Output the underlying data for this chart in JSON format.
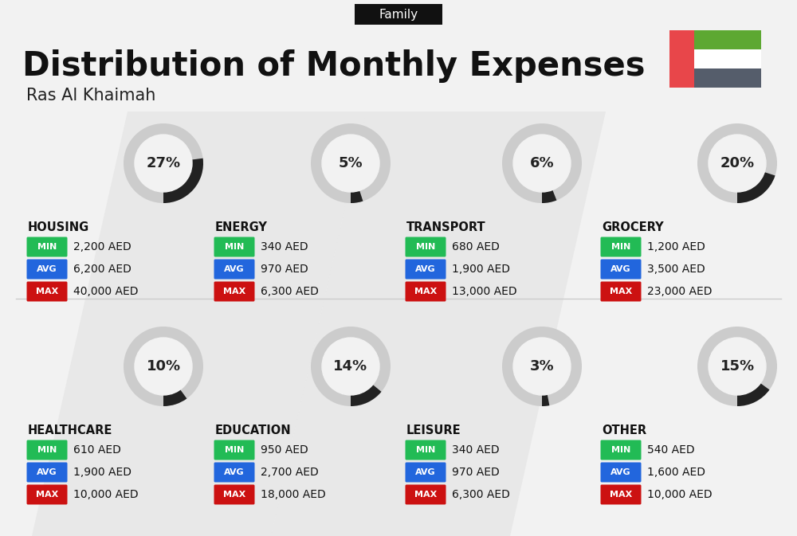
{
  "title": "Distribution of Monthly Expenses",
  "subtitle": "Ras Al Khaimah",
  "tag": "Family",
  "bg_color": "#f2f2f2",
  "categories": [
    {
      "name": "HOUSING",
      "pct": 27,
      "min_val": "2,200 AED",
      "avg_val": "6,200 AED",
      "max_val": "40,000 AED",
      "row": 0,
      "col": 0
    },
    {
      "name": "ENERGY",
      "pct": 5,
      "min_val": "340 AED",
      "avg_val": "970 AED",
      "max_val": "6,300 AED",
      "row": 0,
      "col": 1
    },
    {
      "name": "TRANSPORT",
      "pct": 6,
      "min_val": "680 AED",
      "avg_val": "1,900 AED",
      "max_val": "13,000 AED",
      "row": 0,
      "col": 2
    },
    {
      "name": "GROCERY",
      "pct": 20,
      "min_val": "1,200 AED",
      "avg_val": "3,500 AED",
      "max_val": "23,000 AED",
      "row": 0,
      "col": 3
    },
    {
      "name": "HEALTHCARE",
      "pct": 10,
      "min_val": "610 AED",
      "avg_val": "1,900 AED",
      "max_val": "10,000 AED",
      "row": 1,
      "col": 0
    },
    {
      "name": "EDUCATION",
      "pct": 14,
      "min_val": "950 AED",
      "avg_val": "2,700 AED",
      "max_val": "18,000 AED",
      "row": 1,
      "col": 1
    },
    {
      "name": "LEISURE",
      "pct": 3,
      "min_val": "340 AED",
      "avg_val": "970 AED",
      "max_val": "6,300 AED",
      "row": 1,
      "col": 2
    },
    {
      "name": "OTHER",
      "pct": 15,
      "min_val": "540 AED",
      "avg_val": "1,600 AED",
      "max_val": "10,000 AED",
      "row": 1,
      "col": 3
    }
  ],
  "min_color": "#22bb55",
  "avg_color": "#2266dd",
  "max_color": "#cc1111",
  "badge_text_color": "#ffffff",
  "arc_dark": "#222222",
  "arc_light": "#cccccc",
  "title_color": "#111111",
  "subtitle_color": "#222222",
  "tag_bg": "#111111",
  "tag_text": "#ffffff",
  "cat_name_color": "#111111",
  "val_color": "#111111",
  "flag_red": "#e8464a",
  "flag_green": "#5da832",
  "flag_white": "#ffffff",
  "flag_dark": "#555d6b"
}
